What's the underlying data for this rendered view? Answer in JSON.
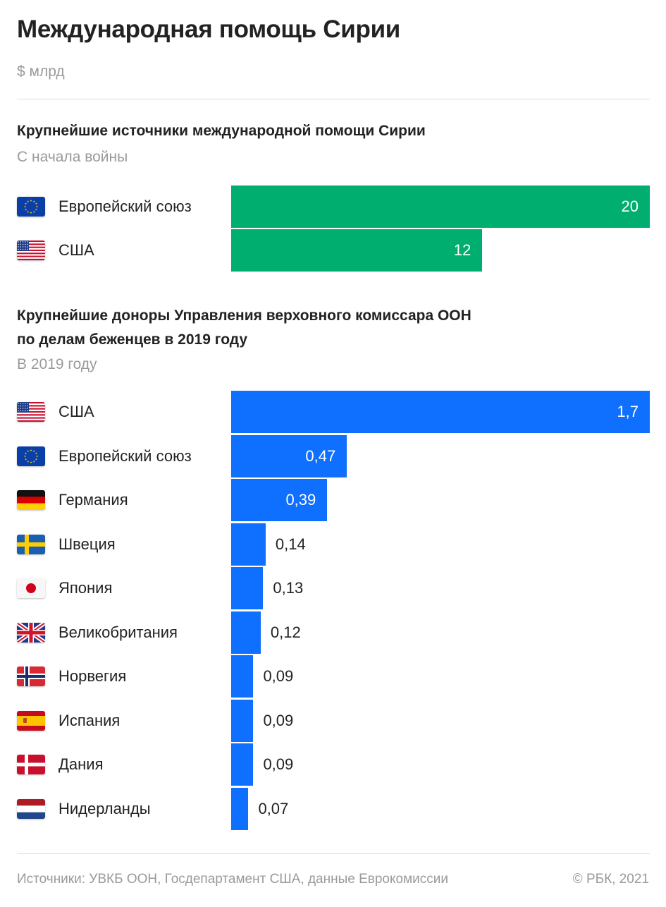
{
  "header": {
    "title": "Международная помощь Сирии",
    "unit": "$ млрд"
  },
  "chart_data": [
    {
      "type": "bar",
      "orientation": "horizontal",
      "title": "Крупнейшие источники международной помощи Сирии",
      "subtitle": "С начала войны",
      "color": "#00af6f",
      "categories": [
        "Европейский союз",
        "США"
      ],
      "flags": [
        "eu-flag-icon",
        "us-flag-icon"
      ],
      "values": [
        20,
        12
      ],
      "value_labels": [
        "20",
        "12"
      ],
      "xlim": [
        0,
        20
      ]
    },
    {
      "type": "bar",
      "orientation": "horizontal",
      "title": [
        "Крупнейшие доноры Управления верховного комиссара ООН",
        "по делам беженцев в 2019 году"
      ],
      "subtitle": "В 2019 году",
      "color": "#0f6ffe",
      "categories": [
        "США",
        "Европейский союз",
        "Германия",
        "Швеция",
        "Япония",
        "Великобритания",
        "Норвегия",
        "Испания",
        "Дания",
        "Нидерланды"
      ],
      "flags": [
        "us-flag-icon",
        "eu-flag-icon",
        "germany-flag-icon",
        "sweden-flag-icon",
        "japan-flag-icon",
        "uk-flag-icon",
        "norway-flag-icon",
        "spain-flag-icon",
        "denmark-flag-icon",
        "netherlands-flag-icon"
      ],
      "values": [
        1.7,
        0.47,
        0.39,
        0.14,
        0.13,
        0.12,
        0.09,
        0.09,
        0.09,
        0.07
      ],
      "value_labels": [
        "1,7",
        "0,47",
        "0,39",
        "0,14",
        "0,13",
        "0,12",
        "0,09",
        "0,09",
        "0,09",
        "0,07"
      ],
      "xlim": [
        0,
        1.7
      ]
    }
  ],
  "footer": {
    "sources": "Источники: УВКБ ООН, Госдепартамент США, данные Еврокомиссии",
    "copyright": "© РБК, 2021"
  }
}
